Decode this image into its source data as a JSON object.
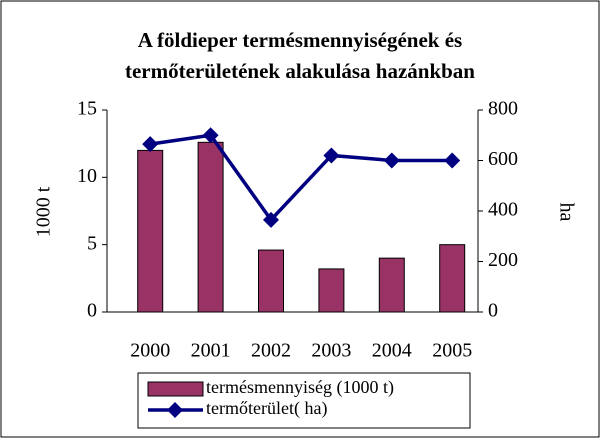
{
  "chart_data": {
    "type": "bar_line",
    "title": [
      "A földieper termésmennyiségének és",
      "termőterületének alakulása hazánkban"
    ],
    "y_label": "1000 t",
    "y2_label": "ha",
    "categories": [
      "2000",
      "2001",
      "2002",
      "2003",
      "2004",
      "2005"
    ],
    "series": [
      {
        "name": "termésmennyiség (1000 t)",
        "type": "bar",
        "color": "#993366",
        "values": [
          12,
          12.6,
          4.6,
          3.2,
          4.0,
          5.0
        ]
      },
      {
        "name": "termőterület( ha)",
        "type": "line",
        "color": "#000080",
        "axis": "y2",
        "values": [
          665,
          700,
          365,
          620,
          600,
          600
        ]
      }
    ],
    "ylim": [
      0,
      15
    ],
    "yticks": [
      0,
      5,
      10,
      15
    ],
    "y2lim": [
      0,
      800
    ],
    "y2ticks": [
      0,
      200,
      400,
      600,
      800
    ],
    "legend": "bottom"
  }
}
